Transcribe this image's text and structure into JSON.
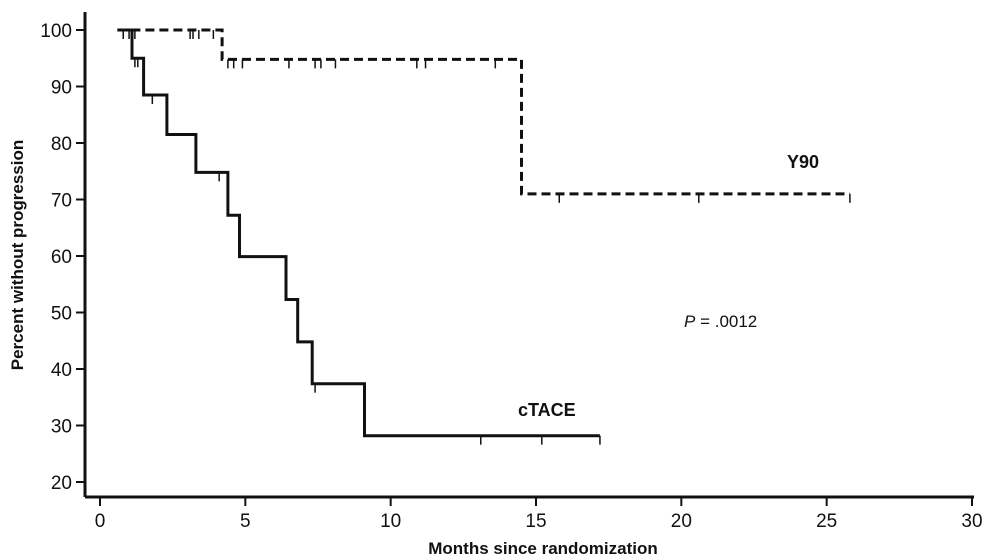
{
  "chart_data": {
    "type": "line",
    "subtype": "kaplan-meier",
    "title": "",
    "xlabel": "Months since randomization",
    "ylabel": "Percent without progression",
    "xlim": [
      0,
      30
    ],
    "ylim": [
      17,
      103
    ],
    "xticks": [
      0,
      5,
      10,
      15,
      20,
      25,
      30
    ],
    "yticks": [
      20,
      30,
      40,
      50,
      60,
      70,
      80,
      90,
      100
    ],
    "grid": false,
    "annotation": {
      "prefix": "P",
      "text": " = .0012"
    },
    "series": [
      {
        "name": "Y90",
        "style": "dashed",
        "color": "#111111",
        "steps": [
          [
            0.6,
            100
          ],
          [
            4.2,
            100
          ],
          [
            4.2,
            94.8
          ],
          [
            14.5,
            94.8
          ],
          [
            14.5,
            71
          ],
          [
            25.8,
            71
          ]
        ],
        "censor_times": [
          0.8,
          1.0,
          1.2,
          3.1,
          3.2,
          3.4,
          3.9,
          4.4,
          4.6,
          4.9,
          6.5,
          7.4,
          7.6,
          8.1,
          10.9,
          11.2,
          13.6,
          15.8,
          20.6,
          25.8
        ]
      },
      {
        "name": "cTACE",
        "style": "solid",
        "color": "#111111",
        "steps": [
          [
            0.6,
            100
          ],
          [
            1.1,
            100
          ],
          [
            1.1,
            95
          ],
          [
            1.5,
            95
          ],
          [
            1.5,
            88.5
          ],
          [
            2.3,
            88.5
          ],
          [
            2.3,
            81.5
          ],
          [
            3.3,
            81.5
          ],
          [
            3.3,
            74.8
          ],
          [
            4.4,
            74.8
          ],
          [
            4.4,
            67.2
          ],
          [
            4.8,
            67.2
          ],
          [
            4.8,
            59.9
          ],
          [
            6.4,
            59.9
          ],
          [
            6.4,
            52.3
          ],
          [
            6.8,
            52.3
          ],
          [
            6.8,
            44.8
          ],
          [
            7.3,
            44.8
          ],
          [
            7.3,
            37.4
          ],
          [
            9.1,
            37.4
          ],
          [
            9.1,
            28.2
          ],
          [
            17.2,
            28.2
          ]
        ],
        "censor_times": [
          1.2,
          1.3,
          1.8,
          4.1,
          7.4,
          13.1,
          15.2,
          17.2
        ]
      }
    ]
  }
}
